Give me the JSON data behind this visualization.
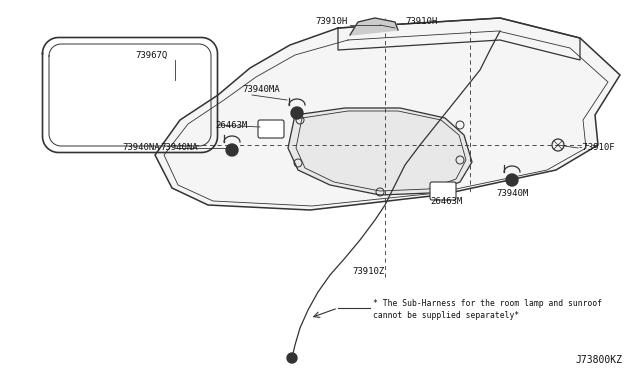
{
  "bg_color": "#ffffff",
  "line_color": "#333333",
  "footnote_line1": "* The Sub-Harness for the room lamp and sunroof",
  "footnote_line2": "cannot be supplied separately*",
  "part_code": "J73800KZ",
  "lw": 0.9
}
